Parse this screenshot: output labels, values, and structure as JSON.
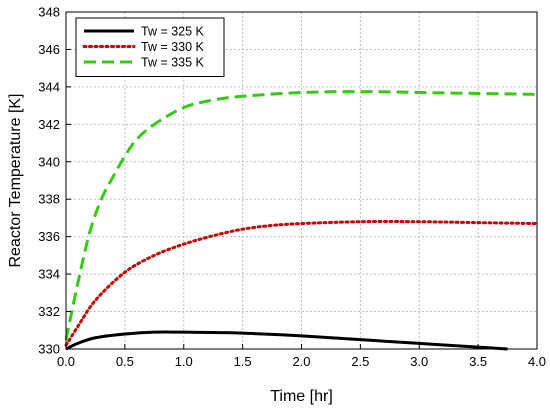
{
  "chart_data": {
    "type": "line",
    "xlabel": "Time [hr]",
    "ylabel": "Reactor Temperature [K]",
    "xlim": [
      0.0,
      4.0
    ],
    "ylim": [
      330,
      348
    ],
    "xticks": [
      0.0,
      0.5,
      1.0,
      1.5,
      2.0,
      2.5,
      3.0,
      3.5,
      4.0
    ],
    "xtick_labels": [
      "0.0",
      "0.5",
      "1.0",
      "1.5",
      "2.0",
      "2.5",
      "3.0",
      "3.5",
      "4.0"
    ],
    "yticks": [
      330,
      332,
      334,
      336,
      338,
      340,
      342,
      344,
      346,
      348
    ],
    "ytick_labels": [
      "330",
      "332",
      "334",
      "336",
      "338",
      "340",
      "342",
      "344",
      "346",
      "348"
    ],
    "grid": true,
    "legend_position": "top-left",
    "series": [
      {
        "name": "Tw = 325 K",
        "color": "#000000",
        "style": "solid",
        "x": [
          0.0,
          0.1,
          0.25,
          0.5,
          0.75,
          1.0,
          1.25,
          1.5,
          2.0,
          2.5,
          3.0,
          3.5,
          3.75
        ],
        "y": [
          330.0,
          330.3,
          330.6,
          330.8,
          330.9,
          330.9,
          330.88,
          330.85,
          330.7,
          330.5,
          330.3,
          330.1,
          330.0
        ]
      },
      {
        "name": "Tw = 330 K",
        "color": "#cc0000",
        "style": "dotted",
        "x": [
          0.0,
          0.1,
          0.25,
          0.5,
          0.75,
          1.0,
          1.25,
          1.5,
          1.75,
          2.0,
          2.5,
          3.0,
          3.5,
          4.0
        ],
        "y": [
          330.2,
          331.2,
          332.6,
          334.1,
          335.0,
          335.6,
          336.05,
          336.4,
          336.6,
          336.7,
          336.8,
          336.8,
          336.75,
          336.7
        ]
      },
      {
        "name": "Tw = 335 K",
        "color": "#33cc11",
        "style": "dashed",
        "x": [
          0.0,
          0.1,
          0.2,
          0.3,
          0.4,
          0.5,
          0.6,
          0.75,
          1.0,
          1.25,
          1.5,
          2.0,
          2.5,
          3.0,
          3.5,
          4.0
        ],
        "y": [
          330.5,
          333.5,
          336.2,
          338.0,
          339.2,
          340.3,
          341.2,
          342.0,
          342.9,
          343.3,
          343.5,
          343.7,
          343.75,
          343.7,
          343.65,
          343.6
        ]
      }
    ]
  }
}
